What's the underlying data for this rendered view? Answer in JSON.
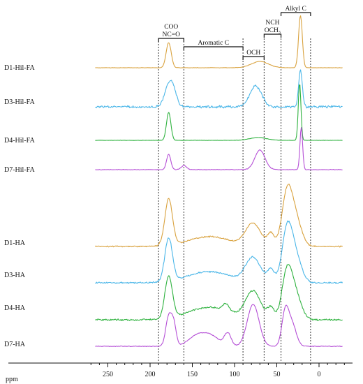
{
  "chart_data": {
    "type": "line",
    "xlabel": "ppm",
    "x_axis": {
      "reversed": true,
      "xlim": [
        270,
        -30
      ],
      "ticks": [
        250,
        200,
        150,
        100,
        50,
        0
      ]
    },
    "regions": [
      {
        "label": "COO",
        "label2": "NC=O",
        "from": 190,
        "to": 160
      },
      {
        "label": "Aromatic C",
        "from": 160,
        "to": 90
      },
      {
        "label": "OCH",
        "from": 90,
        "to": 65
      },
      {
        "label": "NCH",
        "label2": "OCH₃",
        "from": 65,
        "to": 45
      },
      {
        "label": "Alkyl C",
        "from": 45,
        "to": 10
      }
    ],
    "guide_lines_ppm": [
      190,
      160,
      90,
      65,
      45,
      10
    ],
    "series": [
      {
        "name": "D1-Hil-FA",
        "color": "#d9a23e",
        "noise": 0.5,
        "baseline_tilt": 0,
        "peaks": [
          {
            "ppm": 178,
            "height": 36,
            "width": 3
          },
          {
            "ppm": 70,
            "height": 9,
            "width": 10
          },
          {
            "ppm": 22,
            "height": 75,
            "width": 2.2
          }
        ]
      },
      {
        "name": "D3-Hil-FA",
        "color": "#4ab6e8",
        "noise": 2.6,
        "baseline_tilt": 0,
        "peaks": [
          {
            "ppm": 178,
            "height": 30,
            "width": 5
          },
          {
            "ppm": 172,
            "height": 16,
            "width": 4
          },
          {
            "ppm": 75,
            "height": 30,
            "width": 7
          },
          {
            "ppm": 22,
            "height": 52,
            "width": 2.2
          }
        ]
      },
      {
        "name": "D4-Hil-FA",
        "color": "#2fb23f",
        "noise": 0.35,
        "baseline_tilt": 0,
        "peaks": [
          {
            "ppm": 178,
            "height": 40,
            "width": 2.6
          },
          {
            "ppm": 72,
            "height": 4,
            "width": 10
          },
          {
            "ppm": 23,
            "height": 82,
            "width": 1.6
          }
        ]
      },
      {
        "name": "D7-Hil-FA",
        "color": "#b54fd6",
        "noise": 0.6,
        "baseline_tilt": 0,
        "peaks": [
          {
            "ppm": 178,
            "height": 22,
            "width": 2.5
          },
          {
            "ppm": 160,
            "height": 6,
            "width": 3
          },
          {
            "ppm": 70,
            "height": 28,
            "width": 6
          },
          {
            "ppm": 21,
            "height": 60,
            "width": 1.6
          }
        ]
      },
      {
        "name": "D1-HA",
        "color": "#d9a23e",
        "noise": 1.4,
        "baseline_tilt": 10,
        "peaks": [
          {
            "ppm": 178,
            "height": 66,
            "width": 4.5
          },
          {
            "ppm": 130,
            "height": 14,
            "width": 25
          },
          {
            "ppm": 78,
            "height": 32,
            "width": 9
          },
          {
            "ppm": 57,
            "height": 18,
            "width": 4
          },
          {
            "ppm": 38,
            "height": 72,
            "width": 6
          },
          {
            "ppm": 28,
            "height": 40,
            "width": 7
          }
        ]
      },
      {
        "name": "D3-HA",
        "color": "#4ab6e8",
        "noise": 1.7,
        "baseline_tilt": 12,
        "peaks": [
          {
            "ppm": 178,
            "height": 62,
            "width": 4.5
          },
          {
            "ppm": 130,
            "height": 16,
            "width": 25
          },
          {
            "ppm": 78,
            "height": 35,
            "width": 9
          },
          {
            "ppm": 57,
            "height": 18,
            "width": 4
          },
          {
            "ppm": 38,
            "height": 72,
            "width": 6
          },
          {
            "ppm": 28,
            "height": 38,
            "width": 7
          }
        ]
      },
      {
        "name": "D4-HA",
        "color": "#2fb23f",
        "noise": 1.8,
        "baseline_tilt": 10,
        "peaks": [
          {
            "ppm": 178,
            "height": 60,
            "width": 4.5
          },
          {
            "ppm": 130,
            "height": 18,
            "width": 25
          },
          {
            "ppm": 110,
            "height": 10,
            "width": 4
          },
          {
            "ppm": 78,
            "height": 40,
            "width": 9
          },
          {
            "ppm": 57,
            "height": 16,
            "width": 4
          },
          {
            "ppm": 38,
            "height": 65,
            "width": 6
          },
          {
            "ppm": 28,
            "height": 35,
            "width": 7
          }
        ]
      },
      {
        "name": "D7-HA",
        "color": "#b54fd6",
        "noise": 0.8,
        "baseline_tilt": 0,
        "peaks": [
          {
            "ppm": 178,
            "height": 42,
            "width": 3.5
          },
          {
            "ppm": 172,
            "height": 30,
            "width": 3
          },
          {
            "ppm": 145,
            "height": 14,
            "width": 10
          },
          {
            "ppm": 128,
            "height": 14,
            "width": 10
          },
          {
            "ppm": 108,
            "height": 18,
            "width": 4
          },
          {
            "ppm": 78,
            "height": 60,
            "width": 7
          },
          {
            "ppm": 40,
            "height": 48,
            "width": 4
          },
          {
            "ppm": 32,
            "height": 32,
            "width": 5
          }
        ]
      }
    ]
  }
}
